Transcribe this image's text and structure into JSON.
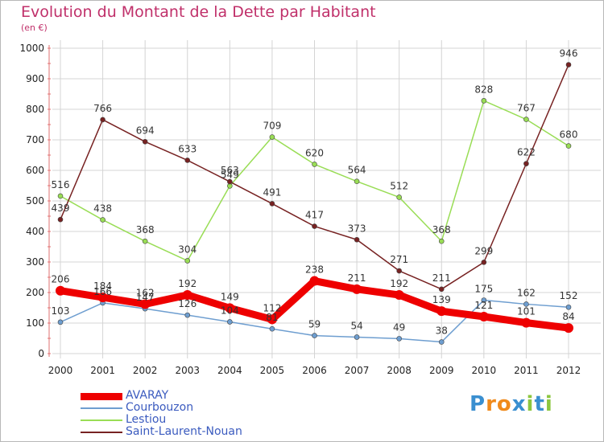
{
  "header": {
    "title": "Evolution du Montant de la Dette par Habitant",
    "unit": "(en €)"
  },
  "colors": {
    "title": "#c0306a",
    "grid": "#d4d4d4",
    "legend_text": "#3b5bbf"
  },
  "logo": {
    "text": "Proxiti",
    "letters": [
      "P",
      "r",
      "o",
      "x",
      "i",
      "t",
      "i"
    ],
    "letter_colors": [
      "#3a8fd0",
      "#f08a1c",
      "#f08a1c",
      "#3a8fd0",
      "#8cc63f",
      "#3a8fd0",
      "#8cc63f"
    ]
  },
  "chart_data": {
    "type": "line",
    "title": "Evolution du Montant de la Dette par Habitant",
    "subtitle": "(en €)",
    "xlabel": "",
    "ylabel": "",
    "categories": [
      "2000",
      "2001",
      "2002",
      "2003",
      "2004",
      "2005",
      "2006",
      "2007",
      "2008",
      "2009",
      "2010",
      "2011",
      "2012"
    ],
    "ylim": [
      0,
      1000
    ],
    "yticks": [
      0,
      100,
      200,
      300,
      400,
      500,
      600,
      700,
      800,
      900,
      1000
    ],
    "grid": true,
    "legend_position": "bottom-left",
    "series": [
      {
        "name": "AVARAY",
        "color": "#ee0000",
        "emphasis": true,
        "values": [
          206,
          184,
          162,
          192,
          149,
          112,
          238,
          211,
          192,
          139,
          121,
          101,
          84
        ]
      },
      {
        "name": "Courbouzon",
        "color": "#6e9ed0",
        "emphasis": false,
        "values": [
          103,
          166,
          147,
          126,
          104,
          81,
          59,
          54,
          49,
          38,
          175,
          162,
          152
        ]
      },
      {
        "name": "Lestiou",
        "color": "#99dd55",
        "emphasis": false,
        "values": [
          516,
          438,
          368,
          304,
          549,
          709,
          620,
          564,
          512,
          368,
          828,
          767,
          680
        ]
      },
      {
        "name": "Saint-Laurent-Nouan",
        "color": "#772222",
        "emphasis": false,
        "values": [
          439,
          766,
          694,
          633,
          563,
          491,
          417,
          373,
          271,
          211,
          299,
          622,
          946
        ]
      }
    ]
  }
}
